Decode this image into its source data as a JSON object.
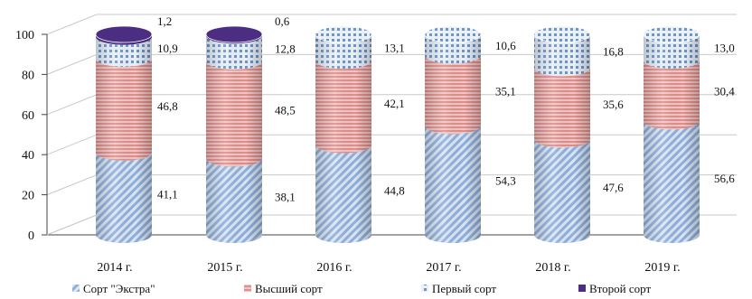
{
  "chart_data": {
    "type": "bar",
    "stacked": true,
    "style": "3d-cylinder",
    "categories": [
      "2014 г.",
      "2015 г.",
      "2016 г.",
      "2017 г.",
      "2018 г.",
      "2019 г."
    ],
    "ylim": [
      0,
      100
    ],
    "yticks": [
      0,
      20,
      40,
      60,
      80,
      100
    ],
    "grid": true,
    "legend_position": "bottom",
    "series": [
      {
        "name": "Сорт \"Экстра\"",
        "values": [
          41.1,
          38.1,
          44.8,
          54.3,
          47.6,
          56.6
        ],
        "labels": [
          "41,1",
          "38,1",
          "44,8",
          "54,3",
          "47,6",
          "56,6"
        ],
        "color": "#a9c3e6",
        "pattern": "diagonal"
      },
      {
        "name": "Высший сорт",
        "values": [
          46.8,
          48.5,
          42.1,
          35.1,
          35.6,
          30.4
        ],
        "labels": [
          "46,8",
          "48,5",
          "42,1",
          "35,1",
          "35,6",
          "30,4"
        ],
        "color": "#e69a98",
        "pattern": "horizontal"
      },
      {
        "name": "Первый сорт",
        "values": [
          10.9,
          12.8,
          13.1,
          10.6,
          16.8,
          13.0
        ],
        "labels": [
          "10,9",
          "12,8",
          "13,1",
          "10,6",
          "16,8",
          "13,0"
        ],
        "color": "#8fb0d8",
        "pattern": "dots"
      },
      {
        "name": "Второй сорт",
        "values": [
          1.2,
          0.6,
          0,
          0,
          0,
          0
        ],
        "labels": [
          "1,2",
          "0,6",
          "",
          "",
          "",
          ""
        ],
        "color": "#4b2d82",
        "pattern": "solid"
      }
    ]
  }
}
